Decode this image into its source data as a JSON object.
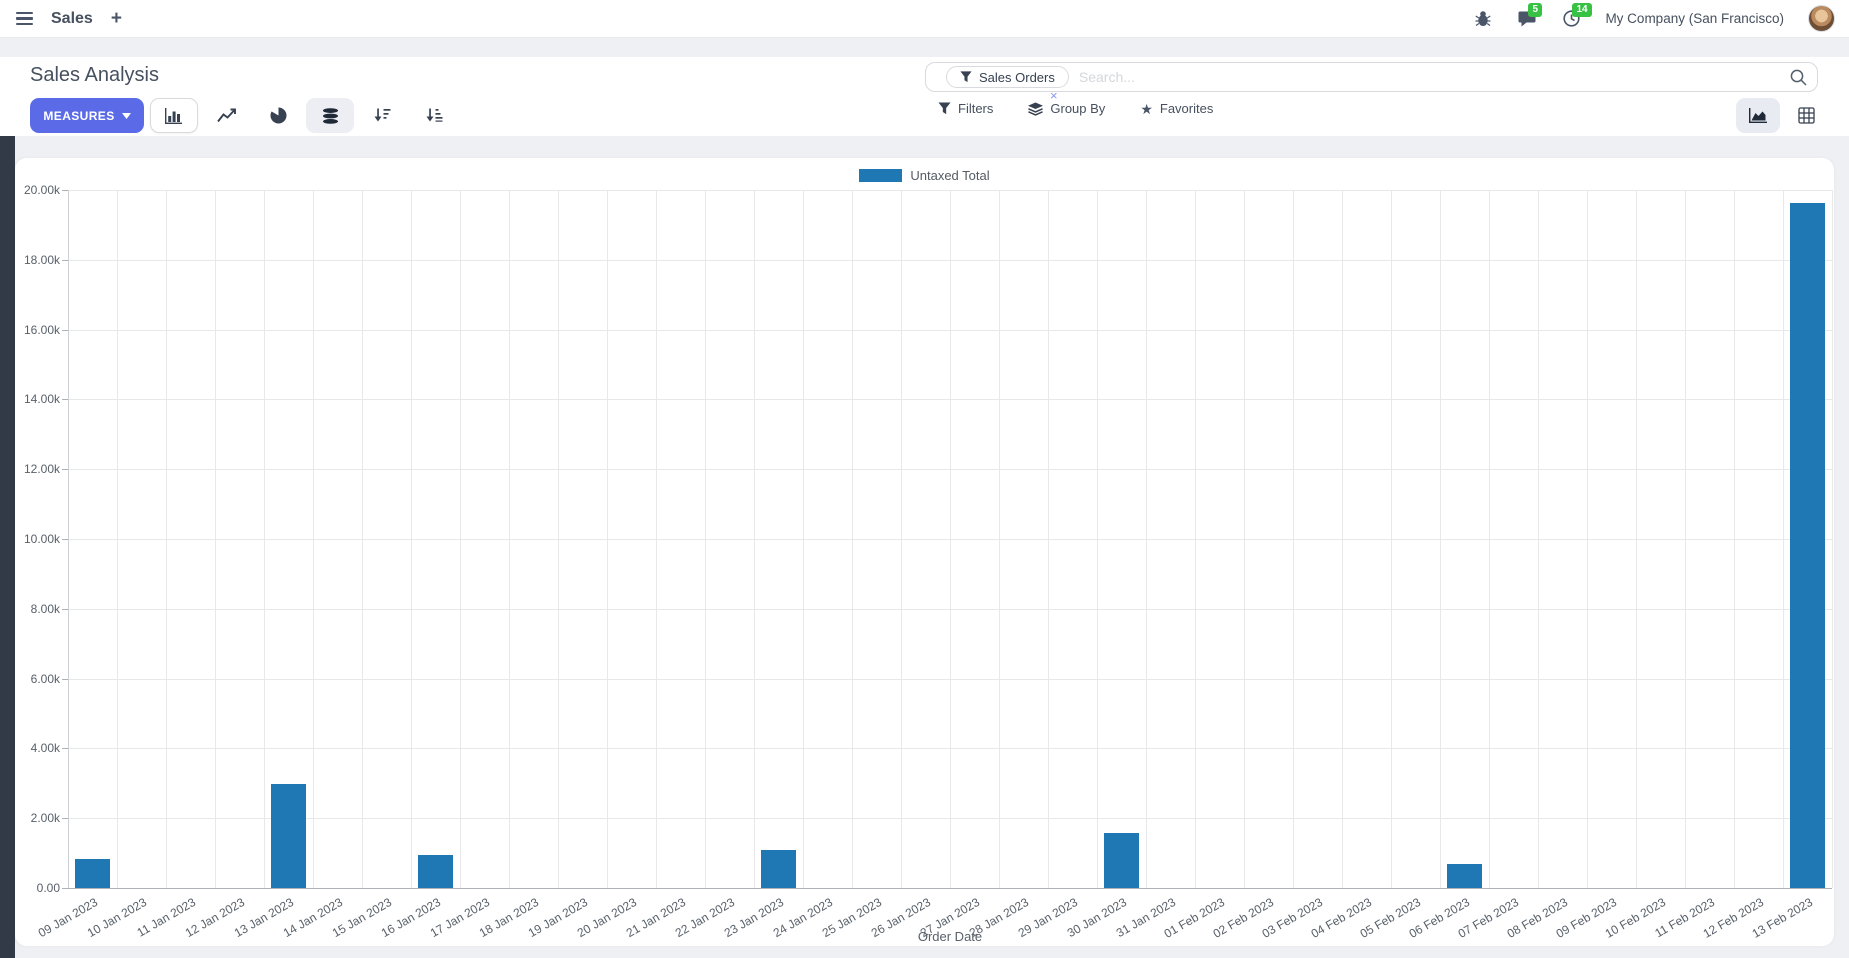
{
  "navbar": {
    "app_name": "Sales",
    "company_name": "My Company (San Francisco)",
    "message_count": "5",
    "activity_count": "14"
  },
  "control_panel": {
    "title": "Sales Analysis",
    "measures_button": "MEASURES",
    "search": {
      "facet_label": "Sales Orders",
      "remove_symbol": "×",
      "placeholder": "Search..."
    },
    "filters_label": "Filters",
    "group_by_label": "Group By",
    "favorites_label": "Favorites"
  },
  "chart_data": {
    "type": "bar",
    "title": "",
    "xlabel": "Order Date",
    "ylabel": "",
    "ylim": [
      0,
      20000
    ],
    "grid": true,
    "legend_position": "top",
    "y_ticks": [
      "0.00",
      "2.00k",
      "4.00k",
      "6.00k",
      "8.00k",
      "10.00k",
      "12.00k",
      "14.00k",
      "16.00k",
      "18.00k",
      "20.00k"
    ],
    "categories": [
      "09 Jan 2023",
      "10 Jan 2023",
      "11 Jan 2023",
      "12 Jan 2023",
      "13 Jan 2023",
      "14 Jan 2023",
      "15 Jan 2023",
      "16 Jan 2023",
      "17 Jan 2023",
      "18 Jan 2023",
      "19 Jan 2023",
      "20 Jan 2023",
      "21 Jan 2023",
      "22 Jan 2023",
      "23 Jan 2023",
      "24 Jan 2023",
      "25 Jan 2023",
      "26 Jan 2023",
      "27 Jan 2023",
      "28 Jan 2023",
      "29 Jan 2023",
      "30 Jan 2023",
      "31 Jan 2023",
      "01 Feb 2023",
      "02 Feb 2023",
      "03 Feb 2023",
      "04 Feb 2023",
      "05 Feb 2023",
      "06 Feb 2023",
      "07 Feb 2023",
      "08 Feb 2023",
      "09 Feb 2023",
      "10 Feb 2023",
      "11 Feb 2023",
      "12 Feb 2023",
      "13 Feb 2023"
    ],
    "series": [
      {
        "name": "Untaxed Total",
        "color": "#1f77b4",
        "values": [
          830,
          0,
          0,
          0,
          2980,
          0,
          0,
          945,
          0,
          0,
          0,
          0,
          0,
          0,
          1100,
          0,
          0,
          0,
          0,
          0,
          0,
          1575,
          0,
          0,
          0,
          0,
          0,
          0,
          690,
          0,
          0,
          0,
          0,
          0,
          0,
          19630
        ]
      }
    ]
  },
  "colors": {
    "accent": "#5b6be8",
    "bar_blue": "#1f77b4",
    "badge_green": "#38c244",
    "navbar_bg": "#ffffff",
    "page_bg": "#eef0f4",
    "card_bg": "#ffffff",
    "left_strip": "#313a46"
  }
}
